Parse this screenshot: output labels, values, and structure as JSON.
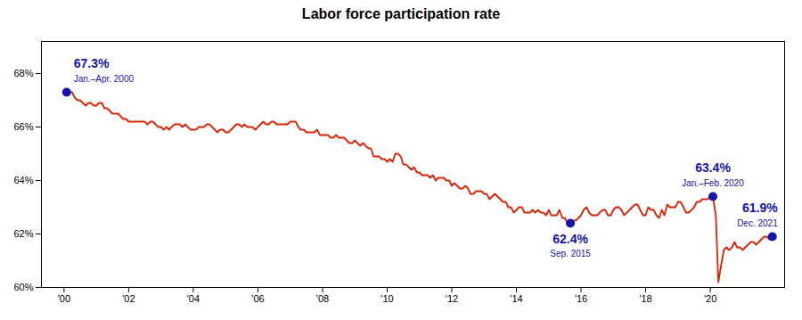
{
  "chart_data": {
    "type": "line",
    "title": "Labor force participation rate",
    "color": "#DD2200",
    "grid": false,
    "xlim": [
      1999.3,
      2022.3
    ],
    "xticks": [
      {
        "value": 2000,
        "label": "'00"
      },
      {
        "value": 2002,
        "label": "'02"
      },
      {
        "value": 2004,
        "label": "'04"
      },
      {
        "value": 2006,
        "label": "'06"
      },
      {
        "value": 2008,
        "label": "'08"
      },
      {
        "value": 2010,
        "label": "'10"
      },
      {
        "value": 2012,
        "label": "'12"
      },
      {
        "value": 2014,
        "label": "'14"
      },
      {
        "value": 2016,
        "label": "'16"
      },
      {
        "value": 2018,
        "label": "'18"
      },
      {
        "value": 2020,
        "label": "'20"
      }
    ],
    "ylim": [
      60.0,
      69.2
    ],
    "yticks": [
      {
        "value": 60,
        "label": "60%"
      },
      {
        "value": 62,
        "label": "62%"
      },
      {
        "value": 64,
        "label": "64%"
      },
      {
        "value": 66,
        "label": "66%"
      },
      {
        "value": 68,
        "label": "68%"
      }
    ],
    "x": [
      2000.0,
      2000.08,
      2000.17,
      2000.25,
      2000.33,
      2000.42,
      2000.5,
      2000.58,
      2000.67,
      2000.75,
      2000.83,
      2000.92,
      2001.0,
      2001.08,
      2001.17,
      2001.25,
      2001.33,
      2001.42,
      2001.5,
      2001.58,
      2001.67,
      2001.75,
      2001.83,
      2001.92,
      2002.0,
      2002.08,
      2002.17,
      2002.25,
      2002.33,
      2002.42,
      2002.5,
      2002.58,
      2002.67,
      2002.75,
      2002.83,
      2002.92,
      2003.0,
      2003.08,
      2003.17,
      2003.25,
      2003.33,
      2003.42,
      2003.5,
      2003.58,
      2003.67,
      2003.75,
      2003.83,
      2003.92,
      2004.0,
      2004.08,
      2004.17,
      2004.25,
      2004.33,
      2004.42,
      2004.5,
      2004.58,
      2004.67,
      2004.75,
      2004.83,
      2004.92,
      2005.0,
      2005.08,
      2005.17,
      2005.25,
      2005.33,
      2005.42,
      2005.5,
      2005.58,
      2005.67,
      2005.75,
      2005.83,
      2005.92,
      2006.0,
      2006.08,
      2006.17,
      2006.25,
      2006.33,
      2006.42,
      2006.5,
      2006.58,
      2006.67,
      2006.75,
      2006.83,
      2006.92,
      2007.0,
      2007.08,
      2007.17,
      2007.25,
      2007.33,
      2007.42,
      2007.5,
      2007.58,
      2007.67,
      2007.75,
      2007.83,
      2007.92,
      2008.0,
      2008.08,
      2008.17,
      2008.25,
      2008.33,
      2008.42,
      2008.5,
      2008.58,
      2008.67,
      2008.75,
      2008.83,
      2008.92,
      2009.0,
      2009.08,
      2009.17,
      2009.25,
      2009.33,
      2009.42,
      2009.5,
      2009.58,
      2009.67,
      2009.75,
      2009.83,
      2009.92,
      2010.0,
      2010.08,
      2010.17,
      2010.25,
      2010.33,
      2010.42,
      2010.5,
      2010.58,
      2010.67,
      2010.75,
      2010.83,
      2010.92,
      2011.0,
      2011.08,
      2011.17,
      2011.25,
      2011.33,
      2011.42,
      2011.5,
      2011.58,
      2011.67,
      2011.75,
      2011.83,
      2011.92,
      2012.0,
      2012.08,
      2012.17,
      2012.25,
      2012.33,
      2012.42,
      2012.5,
      2012.58,
      2012.67,
      2012.75,
      2012.83,
      2012.92,
      2013.0,
      2013.08,
      2013.17,
      2013.25,
      2013.33,
      2013.42,
      2013.5,
      2013.58,
      2013.67,
      2013.75,
      2013.83,
      2013.92,
      2014.0,
      2014.08,
      2014.17,
      2014.25,
      2014.33,
      2014.42,
      2014.5,
      2014.58,
      2014.67,
      2014.75,
      2014.83,
      2014.92,
      2015.0,
      2015.08,
      2015.17,
      2015.25,
      2015.33,
      2015.42,
      2015.5,
      2015.58,
      2015.67,
      2015.75,
      2015.83,
      2015.92,
      2016.0,
      2016.08,
      2016.17,
      2016.25,
      2016.33,
      2016.42,
      2016.5,
      2016.58,
      2016.67,
      2016.75,
      2016.83,
      2016.92,
      2017.0,
      2017.08,
      2017.17,
      2017.25,
      2017.33,
      2017.42,
      2017.5,
      2017.58,
      2017.67,
      2017.75,
      2017.83,
      2017.92,
      2018.0,
      2018.08,
      2018.17,
      2018.25,
      2018.33,
      2018.42,
      2018.5,
      2018.58,
      2018.67,
      2018.75,
      2018.83,
      2018.92,
      2019.0,
      2019.08,
      2019.17,
      2019.25,
      2019.33,
      2019.42,
      2019.5,
      2019.58,
      2019.67,
      2019.75,
      2019.83,
      2019.92,
      2020.0,
      2020.08,
      2020.17,
      2020.25,
      2020.33,
      2020.42,
      2020.5,
      2020.58,
      2020.67,
      2020.75,
      2020.83,
      2020.92,
      2021.0,
      2021.08,
      2021.17,
      2021.25,
      2021.33,
      2021.42,
      2021.5,
      2021.58,
      2021.67,
      2021.75,
      2021.83,
      2021.92
    ],
    "values": [
      67.3,
      67.3,
      67.3,
      67.3,
      67.1,
      67.0,
      67.0,
      66.9,
      66.8,
      66.9,
      66.9,
      66.8,
      66.8,
      66.9,
      66.9,
      66.7,
      66.7,
      66.6,
      66.5,
      66.5,
      66.5,
      66.4,
      66.3,
      66.3,
      66.2,
      66.2,
      66.2,
      66.2,
      66.2,
      66.2,
      66.2,
      66.1,
      66.2,
      66.2,
      66.1,
      66.0,
      66.0,
      65.9,
      66.0,
      65.9,
      66.0,
      66.1,
      66.1,
      66.1,
      66.0,
      66.1,
      66.0,
      65.9,
      65.9,
      65.9,
      66.0,
      66.0,
      66.0,
      66.1,
      66.1,
      66.0,
      65.9,
      65.8,
      65.9,
      65.9,
      65.8,
      65.8,
      65.9,
      66.0,
      66.1,
      66.1,
      66.0,
      66.1,
      66.0,
      66.0,
      66.0,
      65.9,
      66.0,
      66.1,
      66.2,
      66.1,
      66.1,
      66.2,
      66.2,
      66.1,
      66.1,
      66.1,
      66.1,
      66.1,
      66.2,
      66.2,
      66.2,
      66.0,
      65.9,
      65.9,
      65.8,
      65.8,
      65.8,
      65.8,
      65.9,
      65.7,
      65.7,
      65.7,
      65.7,
      65.6,
      65.6,
      65.7,
      65.6,
      65.6,
      65.6,
      65.5,
      65.4,
      65.4,
      65.5,
      65.4,
      65.3,
      65.4,
      65.3,
      65.2,
      65.2,
      64.9,
      64.9,
      64.9,
      64.8,
      64.8,
      64.7,
      64.8,
      64.7,
      65.0,
      65.0,
      64.9,
      64.6,
      64.6,
      64.5,
      64.4,
      64.5,
      64.3,
      64.3,
      64.2,
      64.2,
      64.2,
      64.1,
      64.2,
      64.0,
      64.1,
      64.1,
      64.1,
      64.0,
      64.0,
      63.8,
      63.9,
      63.8,
      63.7,
      63.7,
      63.8,
      63.7,
      63.5,
      63.5,
      63.6,
      63.6,
      63.6,
      63.5,
      63.5,
      63.3,
      63.4,
      63.5,
      63.4,
      63.3,
      63.2,
      63.2,
      63.0,
      63.0,
      62.8,
      62.9,
      63.0,
      63.0,
      62.8,
      62.8,
      62.8,
      62.9,
      62.8,
      62.9,
      62.8,
      62.8,
      62.7,
      62.9,
      62.7,
      62.7,
      62.7,
      62.9,
      62.6,
      62.6,
      62.4,
      62.4,
      62.5,
      62.5,
      62.6,
      62.7,
      62.9,
      63.0,
      62.8,
      62.7,
      62.7,
      62.7,
      62.8,
      62.9,
      62.9,
      62.7,
      62.7,
      62.9,
      63.0,
      63.0,
      62.9,
      62.7,
      62.8,
      62.9,
      63.0,
      63.1,
      63.1,
      62.9,
      62.7,
      62.7,
      63.0,
      62.9,
      62.9,
      62.7,
      62.6,
      62.9,
      62.7,
      63.1,
      63.0,
      63.0,
      63.0,
      63.2,
      63.2,
      63.0,
      62.8,
      62.8,
      62.9,
      63.0,
      63.2,
      63.2,
      63.3,
      63.3,
      63.3,
      63.4,
      63.4,
      62.7,
      60.2,
      60.8,
      61.4,
      61.5,
      61.4,
      61.5,
      61.7,
      61.5,
      61.5,
      61.4,
      61.5,
      61.6,
      61.7,
      61.7,
      61.6,
      61.7,
      61.8,
      61.9,
      61.9,
      61.8,
      61.9
    ],
    "annotations": [
      {
        "x": 2000.08,
        "y": 67.3,
        "label": "67.3%",
        "text": "Jan.–Apr. 2000",
        "color": "#1414AA",
        "marker": "circle"
      },
      {
        "x": 2015.67,
        "y": 62.4,
        "label": "62.4%",
        "text": "Sep. 2015",
        "color": "#1414AA",
        "marker": "circle"
      },
      {
        "x": 2020.08,
        "y": 63.4,
        "label": "63.4%",
        "text": "Jan.–Feb. 2020",
        "color": "#1414AA",
        "marker": "circle"
      },
      {
        "x": 2021.92,
        "y": 61.9,
        "label": "61.9%",
        "text": "Dec. 2021",
        "color": "#1414AA",
        "marker": "circle"
      }
    ]
  }
}
